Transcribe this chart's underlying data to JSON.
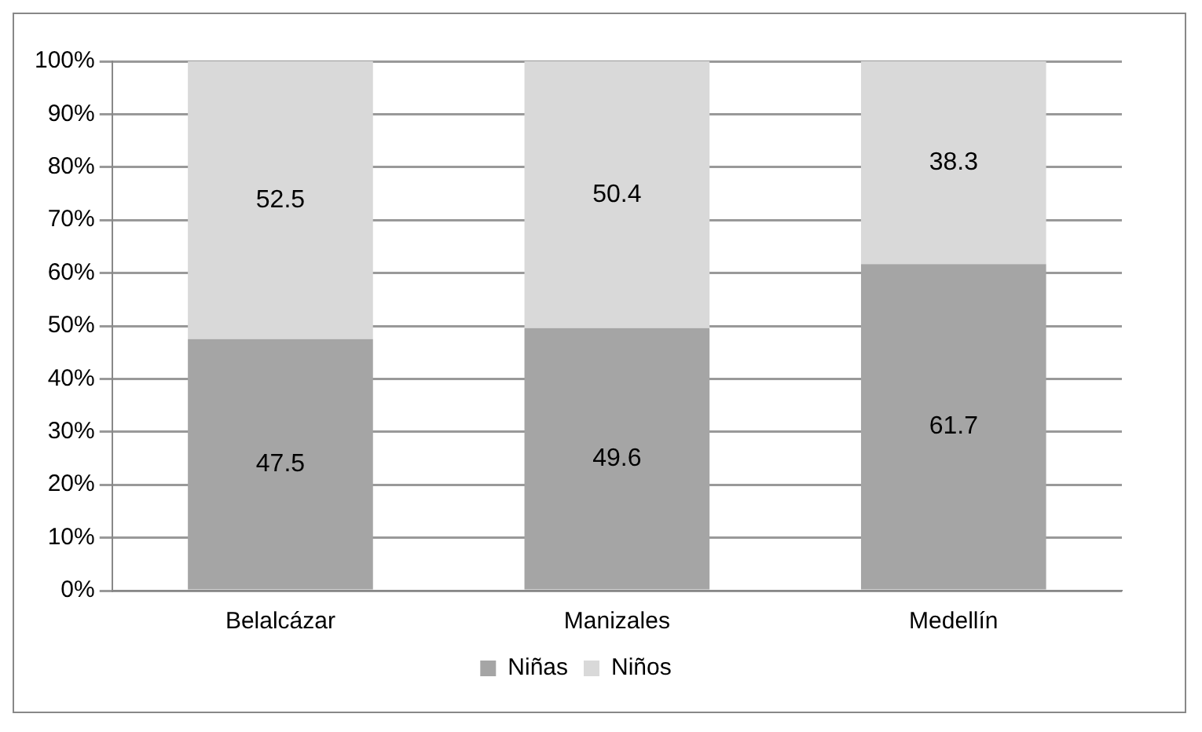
{
  "chart_data": {
    "type": "bar",
    "stacked": true,
    "categories": [
      "Belalcázar",
      "Manizales",
      "Medellín"
    ],
    "series": [
      {
        "name": "Niñas",
        "color": "#a5a5a5",
        "values": [
          47.5,
          49.6,
          61.7
        ]
      },
      {
        "name": "Niños",
        "color": "#d9d9d9",
        "values": [
          52.5,
          50.4,
          38.3
        ]
      }
    ],
    "ylim": [
      0,
      100
    ],
    "yticks": [
      {
        "value": 0,
        "label": "0%"
      },
      {
        "value": 10,
        "label": "10%"
      },
      {
        "value": 20,
        "label": "20%"
      },
      {
        "value": 30,
        "label": "30%"
      },
      {
        "value": 40,
        "label": "40%"
      },
      {
        "value": 50,
        "label": "50%"
      },
      {
        "value": 60,
        "label": "60%"
      },
      {
        "value": 70,
        "label": "70%"
      },
      {
        "value": 80,
        "label": "80%"
      },
      {
        "value": 90,
        "label": "90%"
      },
      {
        "value": 100,
        "label": "100%"
      }
    ],
    "grid": "y",
    "legend": "bottom",
    "data_labels": true
  }
}
